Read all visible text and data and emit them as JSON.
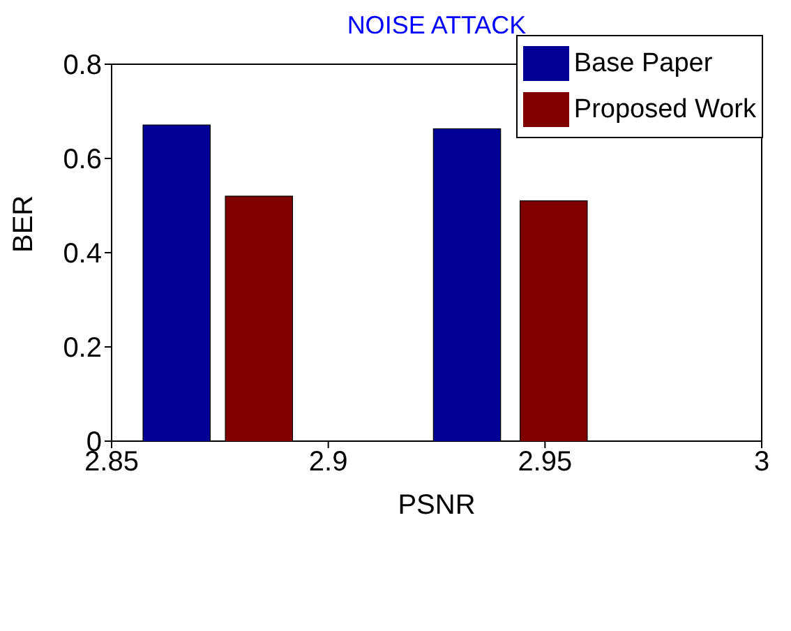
{
  "chart_data": {
    "type": "bar",
    "title": "NOISE ATTACK",
    "xlabel": "PSNR",
    "ylabel": "BER",
    "series": [
      {
        "name": "Base Paper",
        "color": "#000096",
        "x": [
          2.865,
          2.932
        ],
        "values": [
          0.671,
          0.663
        ]
      },
      {
        "name": "Proposed Work",
        "color": "#800000",
        "x": [
          2.884,
          2.952
        ],
        "values": [
          0.52,
          0.51
        ]
      }
    ],
    "xlim": [
      2.85,
      3
    ],
    "xticks": [
      2.85,
      2.9,
      2.95,
      3
    ],
    "ylim": [
      0,
      0.8
    ],
    "yticks": [
      0,
      0.2,
      0.4,
      0.6,
      0.8
    ],
    "legend": "top right"
  }
}
